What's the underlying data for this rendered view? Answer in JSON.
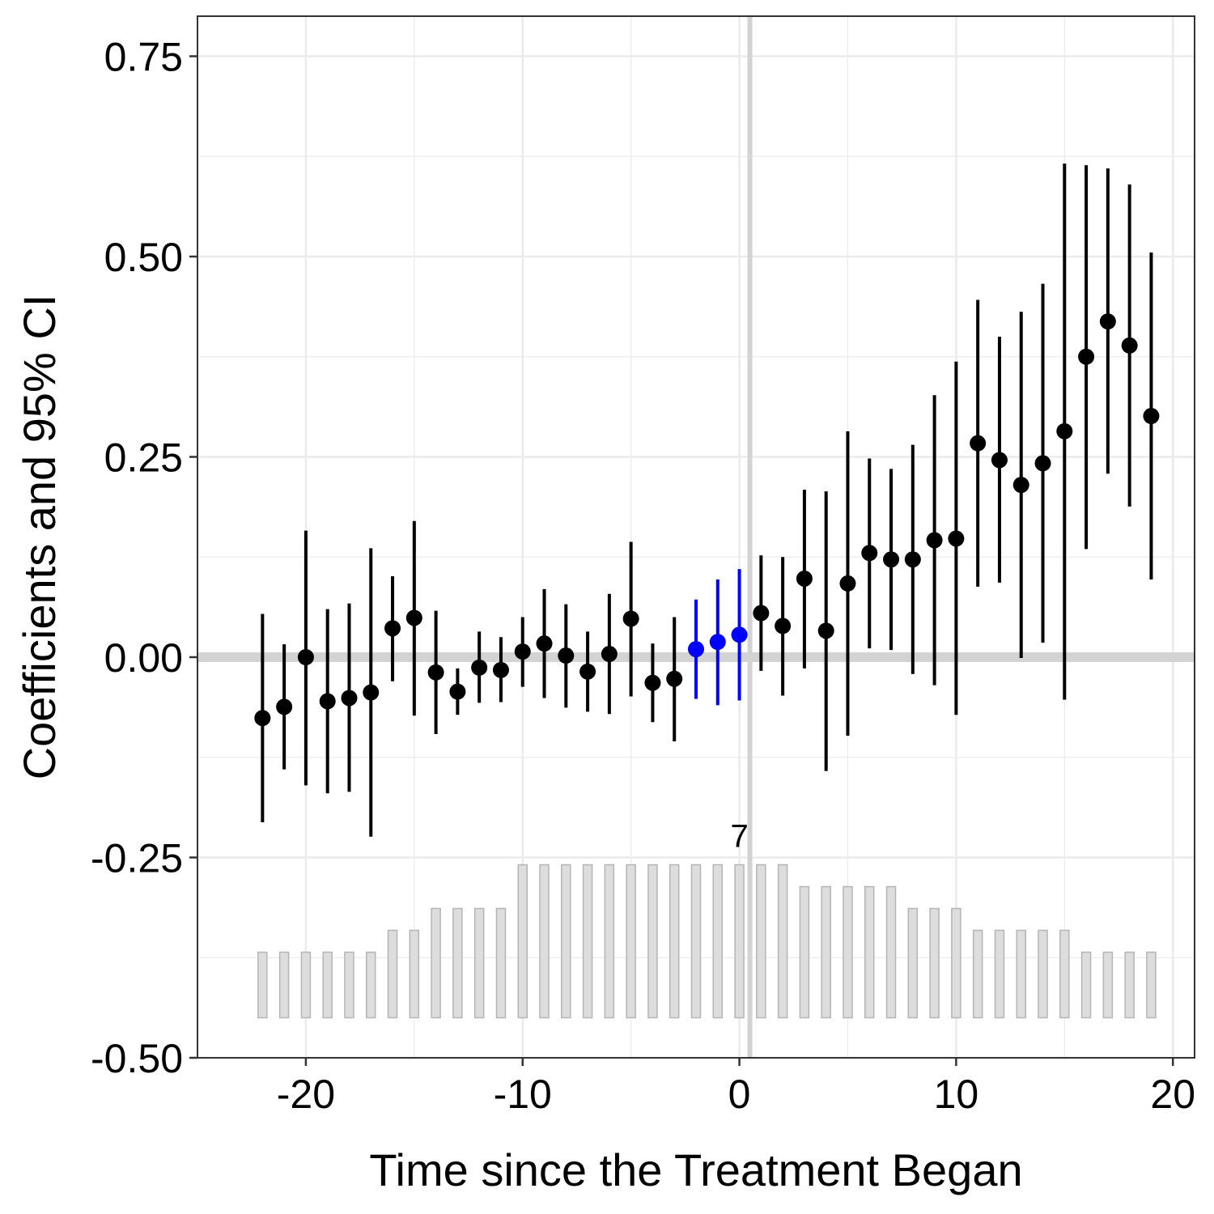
{
  "chart_data": {
    "type": "scatter",
    "xlabel": "Time since the Treatment Began",
    "ylabel": "Coefficients and 95% CI",
    "xlim": [
      -25,
      21
    ],
    "ylim": [
      -0.5,
      0.8
    ],
    "x_ticks": [
      -20,
      -10,
      0,
      10,
      20
    ],
    "x_tick_labels": [
      "-20",
      "-10",
      "0",
      "10",
      "20"
    ],
    "y_ticks": [
      -0.5,
      -0.25,
      0,
      0.25,
      0.5,
      0.75
    ],
    "y_tick_labels": [
      "-0.50",
      "-0.25",
      "0.00",
      "0.25",
      "0.50",
      "0.75"
    ],
    "grid": true,
    "reference_lines": {
      "x": 0,
      "y": 0
    },
    "colors": {
      "estimate": "#000000",
      "highlight": "#0000ff",
      "count_bar_fill": "#dddddd",
      "count_bar_stroke": "#b5b5b5",
      "reference_line": "#d3d3d3",
      "grid": "#ebebeb"
    },
    "points": [
      {
        "x": -22,
        "y": -0.076,
        "lower": -0.206,
        "upper": 0.054,
        "highlight": false
      },
      {
        "x": -21,
        "y": -0.062,
        "lower": -0.14,
        "upper": 0.016,
        "highlight": false
      },
      {
        "x": -20,
        "y": 0.0,
        "lower": -0.16,
        "upper": 0.158,
        "highlight": false
      },
      {
        "x": -19,
        "y": -0.055,
        "lower": -0.17,
        "upper": 0.06,
        "highlight": false
      },
      {
        "x": -18,
        "y": -0.051,
        "lower": -0.168,
        "upper": 0.067,
        "highlight": false
      },
      {
        "x": -17,
        "y": -0.044,
        "lower": -0.224,
        "upper": 0.136,
        "highlight": false
      },
      {
        "x": -16,
        "y": 0.036,
        "lower": -0.03,
        "upper": 0.101,
        "highlight": false
      },
      {
        "x": -15,
        "y": 0.049,
        "lower": -0.073,
        "upper": 0.17,
        "highlight": false
      },
      {
        "x": -14,
        "y": -0.019,
        "lower": -0.096,
        "upper": 0.058,
        "highlight": false
      },
      {
        "x": -13,
        "y": -0.043,
        "lower": -0.072,
        "upper": -0.014,
        "highlight": false
      },
      {
        "x": -12,
        "y": -0.013,
        "lower": -0.057,
        "upper": 0.032,
        "highlight": false
      },
      {
        "x": -11,
        "y": -0.016,
        "lower": -0.056,
        "upper": 0.025,
        "highlight": false
      },
      {
        "x": -10,
        "y": 0.007,
        "lower": -0.037,
        "upper": 0.05,
        "highlight": false
      },
      {
        "x": -9,
        "y": 0.017,
        "lower": -0.051,
        "upper": 0.085,
        "highlight": false
      },
      {
        "x": -8,
        "y": 0.002,
        "lower": -0.063,
        "upper": 0.066,
        "highlight": false
      },
      {
        "x": -7,
        "y": -0.018,
        "lower": -0.068,
        "upper": 0.032,
        "highlight": false
      },
      {
        "x": -6,
        "y": 0.004,
        "lower": -0.071,
        "upper": 0.079,
        "highlight": false
      },
      {
        "x": -5,
        "y": 0.048,
        "lower": -0.049,
        "upper": 0.144,
        "highlight": false
      },
      {
        "x": -4,
        "y": -0.032,
        "lower": -0.081,
        "upper": 0.017,
        "highlight": false
      },
      {
        "x": -3,
        "y": -0.027,
        "lower": -0.105,
        "upper": 0.05,
        "highlight": false
      },
      {
        "x": -2,
        "y": 0.01,
        "lower": -0.052,
        "upper": 0.072,
        "highlight": true
      },
      {
        "x": -1,
        "y": 0.019,
        "lower": -0.06,
        "upper": 0.097,
        "highlight": true
      },
      {
        "x": 0,
        "y": 0.028,
        "lower": -0.054,
        "upper": 0.11,
        "highlight": true
      },
      {
        "x": 1,
        "y": 0.055,
        "lower": -0.017,
        "upper": 0.127,
        "highlight": false
      },
      {
        "x": 2,
        "y": 0.039,
        "lower": -0.048,
        "upper": 0.125,
        "highlight": false
      },
      {
        "x": 3,
        "y": 0.098,
        "lower": -0.014,
        "upper": 0.209,
        "highlight": false
      },
      {
        "x": 4,
        "y": 0.033,
        "lower": -0.142,
        "upper": 0.207,
        "highlight": false
      },
      {
        "x": 5,
        "y": 0.092,
        "lower": -0.098,
        "upper": 0.282,
        "highlight": false
      },
      {
        "x": 6,
        "y": 0.13,
        "lower": 0.011,
        "upper": 0.248,
        "highlight": false
      },
      {
        "x": 7,
        "y": 0.122,
        "lower": 0.009,
        "upper": 0.235,
        "highlight": false
      },
      {
        "x": 8,
        "y": 0.122,
        "lower": -0.021,
        "upper": 0.265,
        "highlight": false
      },
      {
        "x": 9,
        "y": 0.146,
        "lower": -0.035,
        "upper": 0.327,
        "highlight": false
      },
      {
        "x": 10,
        "y": 0.148,
        "lower": -0.072,
        "upper": 0.369,
        "highlight": false
      },
      {
        "x": 11,
        "y": 0.267,
        "lower": 0.088,
        "upper": 0.446,
        "highlight": false
      },
      {
        "x": 12,
        "y": 0.246,
        "lower": 0.093,
        "upper": 0.4,
        "highlight": false
      },
      {
        "x": 13,
        "y": 0.215,
        "lower": -0.001,
        "upper": 0.431,
        "highlight": false
      },
      {
        "x": 14,
        "y": 0.242,
        "lower": 0.018,
        "upper": 0.466,
        "highlight": false
      },
      {
        "x": 15,
        "y": 0.282,
        "lower": -0.053,
        "upper": 0.616,
        "highlight": false
      },
      {
        "x": 16,
        "y": 0.375,
        "lower": 0.135,
        "upper": 0.614,
        "highlight": false
      },
      {
        "x": 17,
        "y": 0.419,
        "lower": 0.229,
        "upper": 0.61,
        "highlight": false
      },
      {
        "x": 18,
        "y": 0.389,
        "lower": 0.188,
        "upper": 0.59,
        "highlight": false
      },
      {
        "x": 19,
        "y": 0.301,
        "lower": 0.097,
        "upper": 0.505,
        "highlight": false
      }
    ],
    "count_bars": {
      "max_label": "7",
      "max_label_x": 0,
      "bottom": -0.45,
      "counts": [
        {
          "x": -22,
          "n": 3
        },
        {
          "x": -21,
          "n": 3
        },
        {
          "x": -20,
          "n": 3
        },
        {
          "x": -19,
          "n": 3
        },
        {
          "x": -18,
          "n": 3
        },
        {
          "x": -17,
          "n": 3
        },
        {
          "x": -16,
          "n": 4
        },
        {
          "x": -15,
          "n": 4
        },
        {
          "x": -14,
          "n": 5
        },
        {
          "x": -13,
          "n": 5
        },
        {
          "x": -12,
          "n": 5
        },
        {
          "x": -11,
          "n": 5
        },
        {
          "x": -10,
          "n": 7
        },
        {
          "x": -9,
          "n": 7
        },
        {
          "x": -8,
          "n": 7
        },
        {
          "x": -7,
          "n": 7
        },
        {
          "x": -6,
          "n": 7
        },
        {
          "x": -5,
          "n": 7
        },
        {
          "x": -4,
          "n": 7
        },
        {
          "x": -3,
          "n": 7
        },
        {
          "x": -2,
          "n": 7
        },
        {
          "x": -1,
          "n": 7
        },
        {
          "x": 0,
          "n": 7
        },
        {
          "x": 1,
          "n": 7
        },
        {
          "x": 2,
          "n": 7
        },
        {
          "x": 3,
          "n": 6
        },
        {
          "x": 4,
          "n": 6
        },
        {
          "x": 5,
          "n": 6
        },
        {
          "x": 6,
          "n": 6
        },
        {
          "x": 7,
          "n": 6
        },
        {
          "x": 8,
          "n": 5
        },
        {
          "x": 9,
          "n": 5
        },
        {
          "x": 10,
          "n": 5
        },
        {
          "x": 11,
          "n": 4
        },
        {
          "x": 12,
          "n": 4
        },
        {
          "x": 13,
          "n": 4
        },
        {
          "x": 14,
          "n": 4
        },
        {
          "x": 15,
          "n": 4
        },
        {
          "x": 16,
          "n": 3
        },
        {
          "x": 17,
          "n": 3
        },
        {
          "x": 18,
          "n": 3
        },
        {
          "x": 19,
          "n": 3
        }
      ]
    }
  }
}
